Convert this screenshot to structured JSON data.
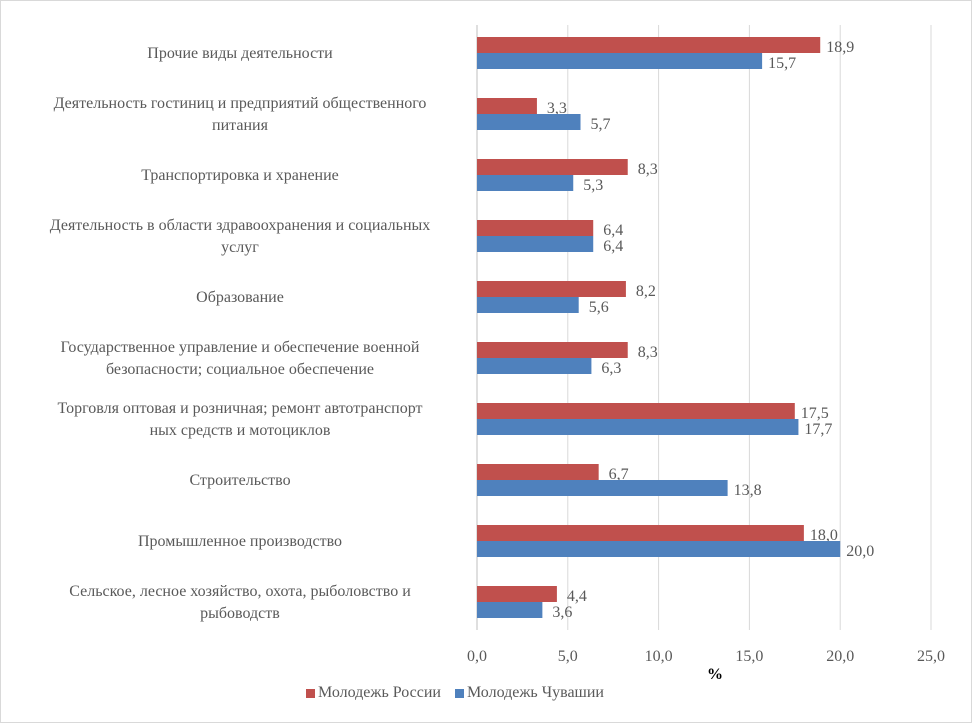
{
  "chart_data": {
    "type": "bar",
    "orientation": "horizontal",
    "categories": [
      [
        "Прочие виды деятельности"
      ],
      [
        "Деятельность гостиниц и предприятий общественного",
        "питания"
      ],
      [
        "Транспортировка и хранение"
      ],
      [
        "Деятельность в области здравоохранения и социальных",
        "услуг"
      ],
      [
        "Образование"
      ],
      [
        "Государственное управление и обеспечение военной",
        "безопасности; социальное обеспечение"
      ],
      [
        "Торговля оптовая и розничная; ремонт автотранспорт",
        "ных средств и мотоциклов"
      ],
      [
        "Строительство"
      ],
      [
        "Промышленное производство"
      ],
      [
        "Сельское, лесное хозяйство, охота, рыболовство и",
        "рыбоводств"
      ]
    ],
    "series": [
      {
        "name": "Молодежь России",
        "color": "#c0504d",
        "values": [
          18.9,
          3.3,
          8.3,
          6.4,
          8.2,
          8.3,
          17.5,
          6.7,
          18.0,
          4.4
        ],
        "labels": [
          "18,9",
          "3,3",
          "8,3",
          "6,4",
          "8,2",
          "8,3",
          "17,5",
          "6,7",
          "18,0",
          "4,4"
        ]
      },
      {
        "name": "Молодежь Чувашии",
        "color": "#4f81bd",
        "values": [
          15.7,
          5.7,
          5.3,
          6.4,
          5.6,
          6.3,
          17.7,
          13.8,
          20.0,
          3.6
        ],
        "labels": [
          "15,7",
          "5,7",
          "5,3",
          "6,4",
          "5,6",
          "6,3",
          "17,7",
          "13,8",
          "20,0",
          "3,6"
        ]
      }
    ],
    "xlabel": "%",
    "xlim": [
      0,
      25
    ],
    "xticks": [
      "0,0",
      "5,0",
      "10,0",
      "15,0",
      "20,0",
      "25,0"
    ],
    "grid": "vertical",
    "legend": "bottom"
  }
}
